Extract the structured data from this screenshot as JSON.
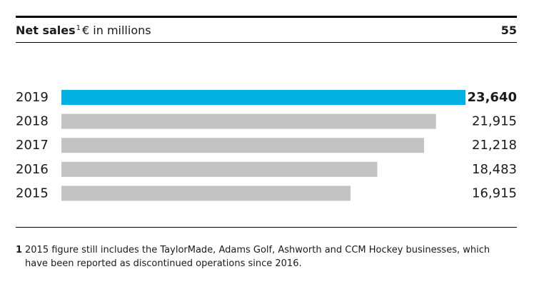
{
  "header": {
    "title_bold": "Net sales",
    "title_sup": "1",
    "title_rest": "€ in millions",
    "page_number": "55"
  },
  "chart_data": {
    "type": "bar",
    "orientation": "horizontal",
    "categories": [
      "2019",
      "2018",
      "2017",
      "2016",
      "2015"
    ],
    "values": [
      23640,
      21915,
      21218,
      18483,
      16915
    ],
    "value_labels": [
      "23,640",
      "21,915",
      "21,218",
      "18,483",
      "16,915"
    ],
    "highlight_index": 0,
    "colors": {
      "highlight": "#00b1e2",
      "default": "#c3c3c3"
    },
    "xlim": [
      0,
      23640
    ],
    "title": "Net sales € in millions"
  },
  "footnote": {
    "marker": "1",
    "text": "2015 figure still includes the TaylorMade, Adams Golf, Ashworth and CCM Hockey businesses, which have been reported as discontinued operations since 2016."
  }
}
